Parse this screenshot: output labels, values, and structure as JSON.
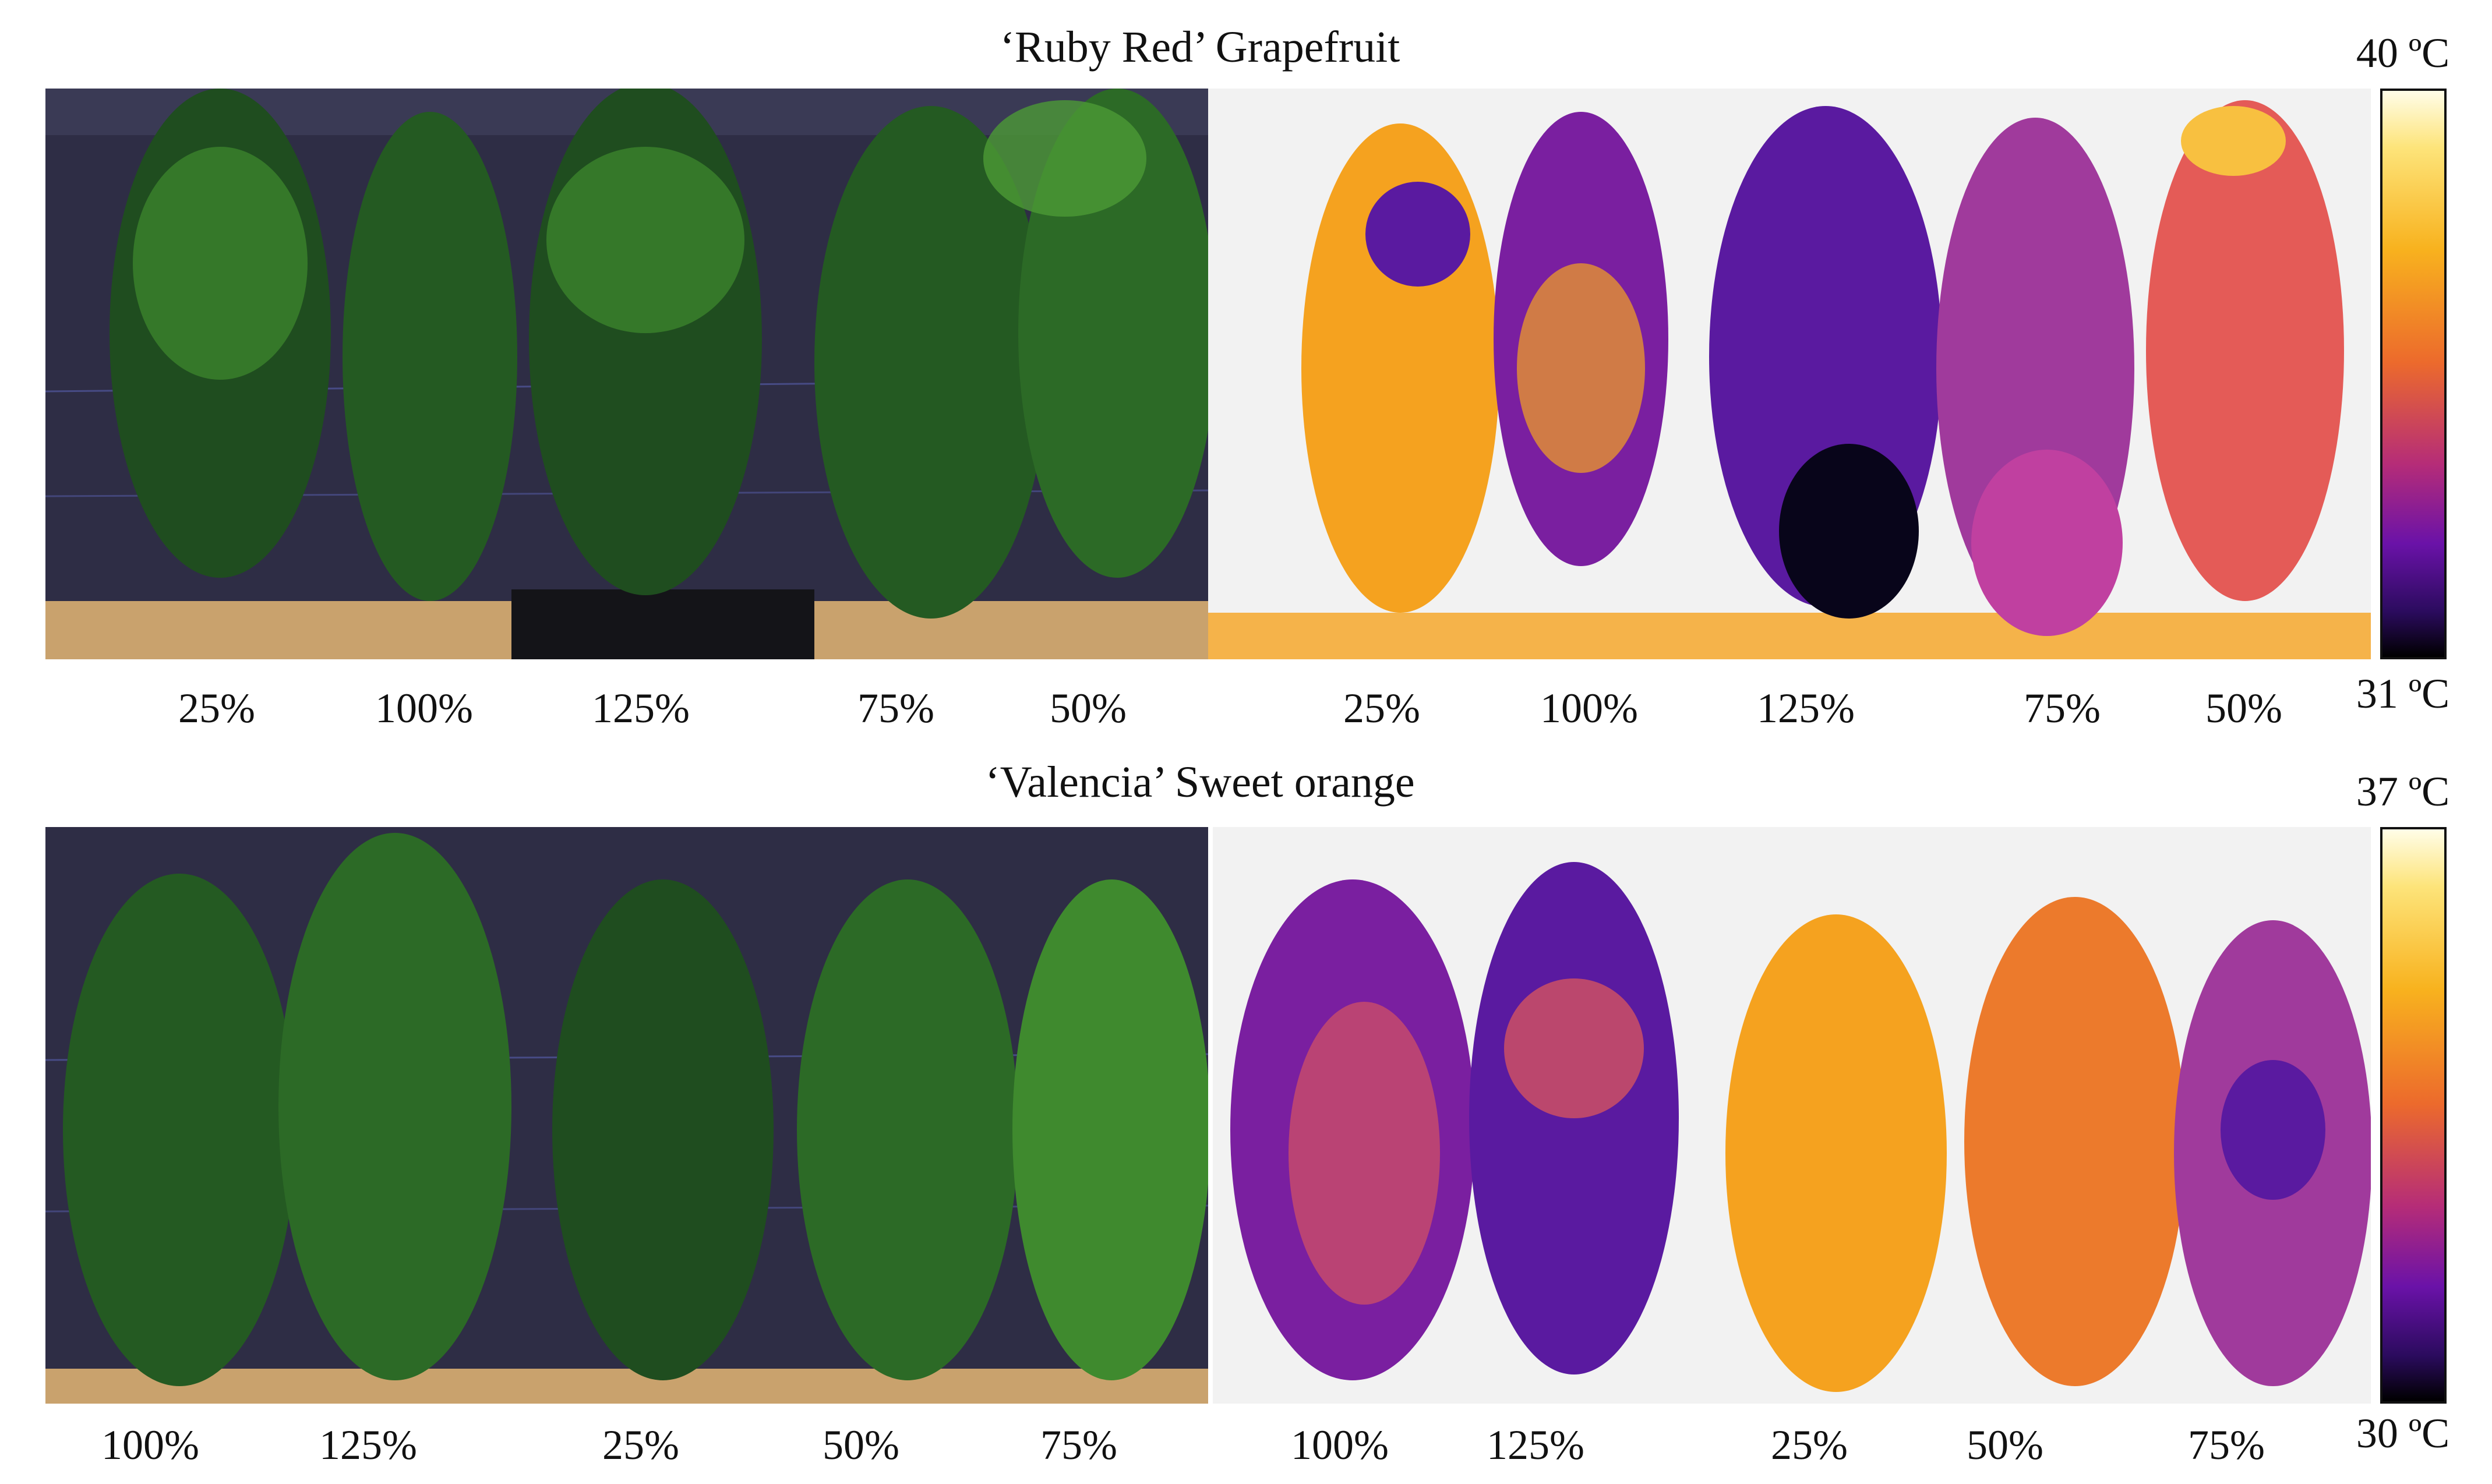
{
  "figure": {
    "top": {
      "title": "‘Ruby Red’ Grapefruit",
      "visible_labels": [
        "25%",
        "100%",
        "125%",
        "75%",
        "50%"
      ],
      "thermal_labels": [
        "25%",
        "100%",
        "125%",
        "75%",
        "50%"
      ],
      "scale_max": "40 ºC",
      "scale_min": "31 ºC"
    },
    "bottom": {
      "title": "‘Valencia’ Sweet orange",
      "visible_labels": [
        "100%",
        "125%",
        "25%",
        "50%",
        "75%"
      ],
      "thermal_labels": [
        "100%",
        "125%",
        "25%",
        "50%",
        "75%"
      ],
      "scale_max": "37 ºC",
      "scale_min": "30 ºC"
    }
  },
  "colors": {
    "backdrop": "#2e2d45",
    "leaf_dark": "#1f4d1f",
    "leaf_light": "#3f8a2e",
    "thermal_bg": "#f2f2f2",
    "thermal_hot": "#f5a21f",
    "thermal_mid": "#e45b57",
    "thermal_cool": "#5a1aa0",
    "thermal_coldest": "#08051a"
  }
}
